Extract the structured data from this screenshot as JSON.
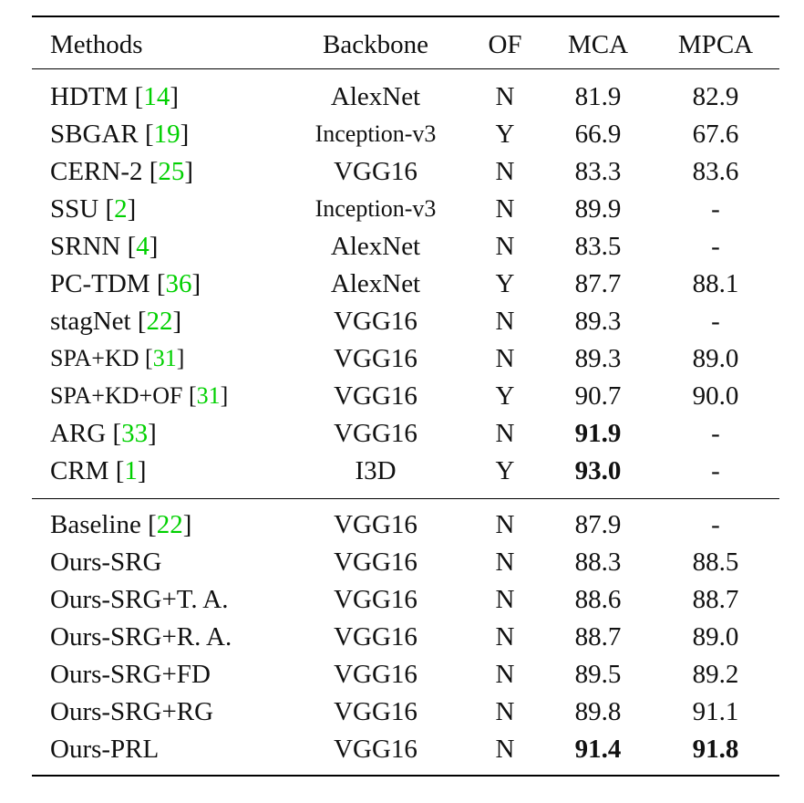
{
  "headers": {
    "methods": "Methods",
    "backbone": "Backbone",
    "of": "OF",
    "mca": "MCA",
    "mpca": "MPCA"
  },
  "rows": [
    {
      "method": "HDTM",
      "cite": "14",
      "backbone": "AlexNet",
      "of": "N",
      "mca": "81.9",
      "mpca": "82.9"
    },
    {
      "method": "SBGAR",
      "cite": "19",
      "backbone": "Inception-v3",
      "of": "Y",
      "mca": "66.9",
      "mpca": "67.6"
    },
    {
      "method": "CERN-2",
      "cite": "25",
      "backbone": "VGG16",
      "of": "N",
      "mca": "83.3",
      "mpca": "83.6"
    },
    {
      "method": "SSU",
      "cite": "2",
      "backbone": "Inception-v3",
      "of": "N",
      "mca": "89.9",
      "mpca": "-"
    },
    {
      "method": "SRNN",
      "cite": "4",
      "backbone": "AlexNet",
      "of": "N",
      "mca": "83.5",
      "mpca": "-"
    },
    {
      "method": "PC-TDM",
      "cite": "36",
      "backbone": "AlexNet",
      "of": "Y",
      "mca": "87.7",
      "mpca": "88.1"
    },
    {
      "method": "stagNet",
      "cite": "22",
      "backbone": "VGG16",
      "of": "N",
      "mca": "89.3",
      "mpca": "-"
    },
    {
      "method": "SPA+KD",
      "cite": "31",
      "backbone": "VGG16",
      "of": "N",
      "mca": "89.3",
      "mpca": "89.0"
    },
    {
      "method": "SPA+KD+OF",
      "cite": "31",
      "backbone": "VGG16",
      "of": "Y",
      "mca": "90.7",
      "mpca": "90.0"
    },
    {
      "method": "ARG",
      "cite": "33",
      "backbone": "VGG16",
      "of": "N",
      "mca": "91.9",
      "mpca": "-"
    },
    {
      "method": "CRM",
      "cite": "1",
      "backbone": "I3D",
      "of": "Y",
      "mca": "93.0",
      "mpca": "-"
    },
    {
      "method": "Baseline",
      "cite": "22",
      "backbone": "VGG16",
      "of": "N",
      "mca": "87.9",
      "mpca": "-"
    },
    {
      "method": "Ours-SRG",
      "backbone": "VGG16",
      "of": "N",
      "mca": "88.3",
      "mpca": "88.5"
    },
    {
      "method": "Ours-SRG+T. A.",
      "backbone": "VGG16",
      "of": "N",
      "mca": "88.6",
      "mpca": "88.7"
    },
    {
      "method": "Ours-SRG+R. A.",
      "backbone": "VGG16",
      "of": "N",
      "mca": "88.7",
      "mpca": "89.0"
    },
    {
      "method": "Ours-SRG+FD",
      "backbone": "VGG16",
      "of": "N",
      "mca": "89.5",
      "mpca": "89.2"
    },
    {
      "method": "Ours-SRG+RG",
      "backbone": "VGG16",
      "of": "N",
      "mca": "89.8",
      "mpca": "91.1"
    },
    {
      "method": "Ours-PRL",
      "backbone": "VGG16",
      "of": "N",
      "mca": "91.4",
      "mpca": "91.8"
    }
  ]
}
